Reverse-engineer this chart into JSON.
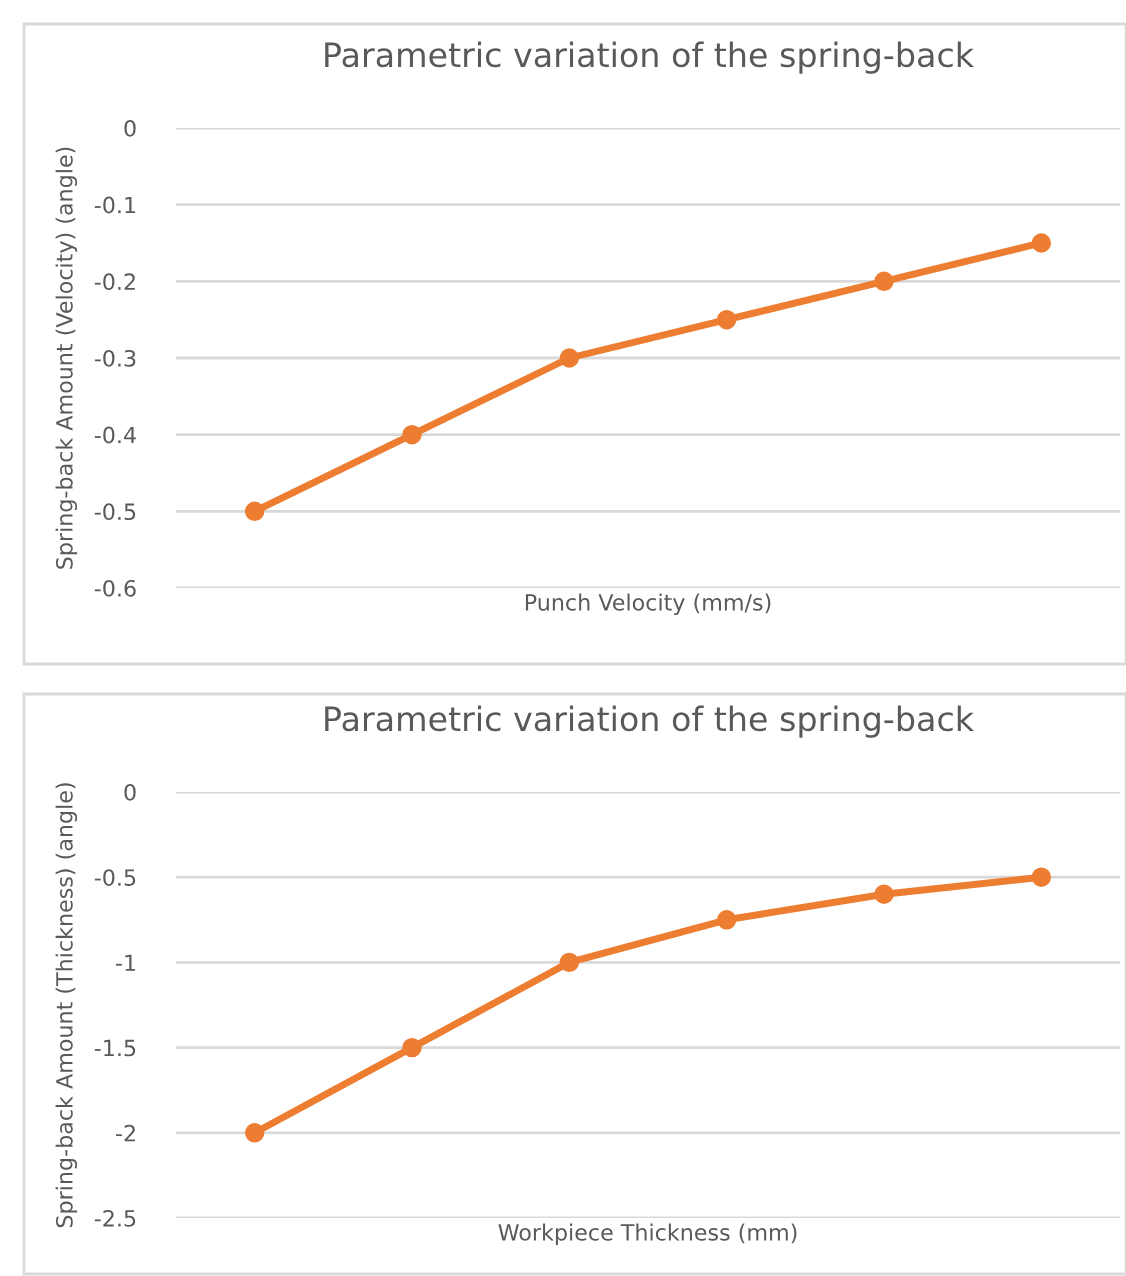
{
  "chart_data": [
    {
      "type": "line",
      "title": "Parametric variation of the spring-back",
      "xlabel": "Punch Velocity (mm/s)",
      "ylabel": "Spring-back Amount (Velocity) (angle)",
      "categories": [
        null,
        null,
        null,
        null,
        null,
        null
      ],
      "series": [
        {
          "color": "#ed7d31",
          "values": [
            -0.5,
            -0.4,
            -0.3,
            -0.25,
            -0.2,
            -0.15
          ]
        }
      ],
      "ylim": [
        -0.6,
        0
      ],
      "yticks": [
        {
          "value": -0.6,
          "label": "-0.6"
        },
        {
          "value": -0.5,
          "label": "-0.5"
        },
        {
          "value": -0.4,
          "label": "-0.4"
        },
        {
          "value": -0.3,
          "label": "-0.3"
        },
        {
          "value": -0.2,
          "label": "-0.2"
        },
        {
          "value": -0.1,
          "label": "-0.1"
        },
        0
      ],
      "grid": "y",
      "marker": "circle",
      "line_style": "solid",
      "tick_labels": "y",
      "legend": false
    },
    {
      "type": "line",
      "title": "Parametric variation of the spring-back",
      "xlabel": "Workpiece Thickness (mm)",
      "ylabel": "Spring-back Amount (Thickness) (angle)",
      "categories": [
        null,
        null,
        null,
        null,
        null,
        null
      ],
      "series": [
        {
          "color": "#ed7d31",
          "values": [
            -2,
            -1.5,
            -1,
            -0.75,
            -0.6,
            -0.5
          ]
        }
      ],
      "ylim": [
        -2.5,
        0
      ],
      "yticks": [
        {
          "value": -2.5,
          "label": "-2.5"
        },
        {
          "value": -2,
          "label": "-2"
        },
        {
          "value": -1.5,
          "label": "-1.5"
        },
        {
          "value": -1,
          "label": "-1"
        },
        {
          "value": -0.5,
          "label": "-0.5"
        },
        0
      ],
      "grid": "y",
      "marker": "circle",
      "line_style": "solid",
      "tick_labels": "y",
      "legend": false
    }
  ]
}
